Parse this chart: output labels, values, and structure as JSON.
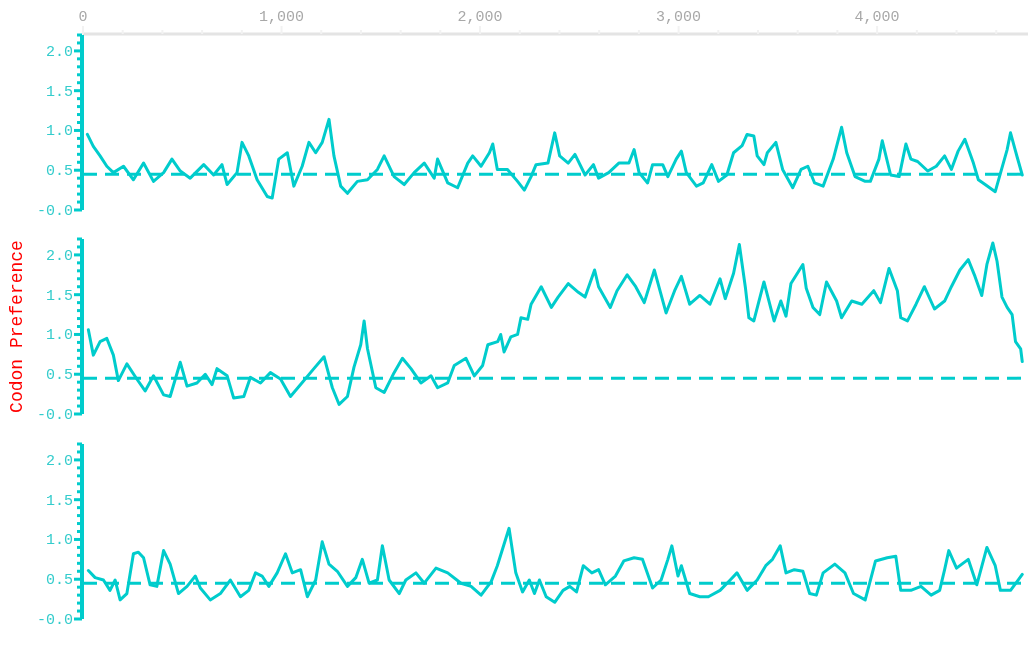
{
  "chart_data": [
    {
      "type": "line",
      "xlim": [
        0,
        4760
      ],
      "xticks": [
        0,
        {
          "value": 200,
          "label": null
        },
        {
          "value": 400,
          "label": null
        },
        {
          "value": 600,
          "label": null
        },
        {
          "value": 800,
          "label": null
        },
        {
          "value": 1000,
          "label": "1,000"
        },
        {
          "value": 1200,
          "label": null
        },
        {
          "value": 1400,
          "label": null
        },
        {
          "value": 1600,
          "label": null
        },
        {
          "value": 1800,
          "label": null
        },
        {
          "value": 2000,
          "label": "2,000"
        },
        {
          "value": 2200,
          "label": null
        },
        {
          "value": 2400,
          "label": null
        },
        {
          "value": 2600,
          "label": null
        },
        {
          "value": 2800,
          "label": null
        },
        {
          "value": 3000,
          "label": "3,000"
        },
        {
          "value": 3200,
          "label": null
        },
        {
          "value": 3400,
          "label": null
        },
        {
          "value": 3600,
          "label": null
        },
        {
          "value": 3800,
          "label": null
        },
        {
          "value": 4000,
          "label": "4,000"
        },
        {
          "value": 4200,
          "label": null
        },
        {
          "value": 4400,
          "label": null
        },
        {
          "value": 4600,
          "label": null
        }
      ],
      "ylim": [
        0,
        2.2
      ],
      "yticks": [
        {
          "value": 0,
          "label": "-0.0"
        },
        {
          "value": 0.1,
          "label": null
        },
        {
          "value": 0.2,
          "label": null
        },
        {
          "value": 0.3,
          "label": null
        },
        {
          "value": 0.4,
          "label": null
        },
        {
          "value": 0.5,
          "label": "0.5"
        },
        {
          "value": 0.6,
          "label": null
        },
        {
          "value": 0.7,
          "label": null
        },
        {
          "value": 0.8,
          "label": null
        },
        {
          "value": 0.9,
          "label": null
        },
        {
          "value": 1,
          "label": "1.0"
        },
        {
          "value": 1.1,
          "label": null
        },
        {
          "value": 1.2,
          "label": null
        },
        {
          "value": 1.3,
          "label": null
        },
        {
          "value": 1.4,
          "label": null
        },
        {
          "value": 1.5,
          "label": "1.5"
        },
        {
          "value": 1.6,
          "label": null
        },
        {
          "value": 1.7,
          "label": null
        },
        {
          "value": 1.8,
          "label": null
        },
        {
          "value": 1.9,
          "label": null
        },
        {
          "value": 2,
          "label": "2.0"
        },
        {
          "value": 2.1,
          "label": null
        },
        {
          "value": 2.2,
          "label": null
        }
      ],
      "ref_lines": [
        {
          "axis": "y",
          "value": 0.45,
          "color": "#00cccc",
          "line_style": "dashed"
        }
      ],
      "series": [
        {
          "color": "#00cccc",
          "x": [
            22,
            52,
            86,
            120,
            153,
            204,
            254,
            305,
            355,
            406,
            448,
            490,
            540,
            608,
            658,
            700,
            726,
            776,
            801,
            835,
            877,
            928,
            953,
            986,
            1029,
            1062,
            1104,
            1138,
            1172,
            1205,
            1239,
            1264,
            1298,
            1332,
            1382,
            1433,
            1483,
            1517,
            1567,
            1618,
            1668,
            1719,
            1769,
            1786,
            1837,
            1887,
            1938,
            1963,
            2005,
            2047,
            2064,
            2087,
            2138,
            2189,
            2223,
            2257,
            2282,
            2342,
            2376,
            2401,
            2444,
            2478,
            2529,
            2571,
            2597,
            2648,
            2699,
            2750,
            2776,
            2801,
            2844,
            2869,
            2920,
            2946,
            2988,
            3014,
            3039,
            3090,
            3124,
            3167,
            3201,
            3243,
            3277,
            3320,
            3345,
            3379,
            3396,
            3430,
            3447,
            3490,
            3524,
            3575,
            3617,
            3651,
            3685,
            3728,
            3779,
            3821,
            3847,
            3889,
            3940,
            3966,
            4009,
            4026,
            4068,
            4111,
            4145,
            4170,
            4204,
            4255,
            4298,
            4340,
            4374,
            4408,
            4442,
            4485,
            4510,
            4544,
            4595,
            4655,
            4672,
            4706,
            4731
          ],
          "values": [
            0.95,
            0.8,
            0.68,
            0.55,
            0.47,
            0.55,
            0.38,
            0.59,
            0.36,
            0.47,
            0.64,
            0.49,
            0.4,
            0.57,
            0.44,
            0.57,
            0.32,
            0.47,
            0.85,
            0.68,
            0.38,
            0.17,
            0.15,
            0.64,
            0.72,
            0.3,
            0.55,
            0.85,
            0.72,
            0.85,
            1.14,
            0.68,
            0.3,
            0.21,
            0.36,
            0.38,
            0.51,
            0.68,
            0.42,
            0.32,
            0.47,
            0.59,
            0.4,
            0.64,
            0.34,
            0.28,
            0.59,
            0.68,
            0.55,
            0.72,
            0.83,
            0.51,
            0.51,
            0.36,
            0.25,
            0.42,
            0.57,
            0.59,
            0.97,
            0.68,
            0.59,
            0.7,
            0.44,
            0.57,
            0.4,
            0.47,
            0.59,
            0.59,
            0.76,
            0.47,
            0.34,
            0.57,
            0.57,
            0.42,
            0.64,
            0.74,
            0.47,
            0.3,
            0.34,
            0.57,
            0.36,
            0.44,
            0.72,
            0.81,
            0.95,
            0.93,
            0.68,
            0.57,
            0.72,
            0.85,
            0.51,
            0.28,
            0.51,
            0.55,
            0.34,
            0.3,
            0.64,
            1.04,
            0.72,
            0.42,
            0.36,
            0.36,
            0.64,
            0.87,
            0.44,
            0.42,
            0.83,
            0.64,
            0.61,
            0.49,
            0.55,
            0.68,
            0.51,
            0.74,
            0.89,
            0.59,
            0.38,
            0.32,
            0.23,
            0.76,
            0.97,
            0.66,
            0.44
          ]
        }
      ]
    },
    {
      "type": "line",
      "xlim": [
        0,
        4760
      ],
      "tick_labels": "y",
      "ylabel": "Codon Preference",
      "ylim": [
        0,
        2.2
      ],
      "yticks": [
        {
          "value": 0,
          "label": "-0.0"
        },
        {
          "value": 0.1,
          "label": null
        },
        {
          "value": 0.2,
          "label": null
        },
        {
          "value": 0.3,
          "label": null
        },
        {
          "value": 0.4,
          "label": null
        },
        {
          "value": 0.5,
          "label": "0.5"
        },
        {
          "value": 0.6,
          "label": null
        },
        {
          "value": 0.7,
          "label": null
        },
        {
          "value": 0.8,
          "label": null
        },
        {
          "value": 0.9,
          "label": null
        },
        {
          "value": 1,
          "label": "1.0"
        },
        {
          "value": 1.1,
          "label": null
        },
        {
          "value": 1.2,
          "label": null
        },
        {
          "value": 1.3,
          "label": null
        },
        {
          "value": 1.4,
          "label": null
        },
        {
          "value": 1.5,
          "label": "1.5"
        },
        {
          "value": 1.6,
          "label": null
        },
        {
          "value": 1.7,
          "label": null
        },
        {
          "value": 1.8,
          "label": null
        },
        {
          "value": 1.9,
          "label": null
        },
        {
          "value": 2,
          "label": "2.0"
        },
        {
          "value": 2.1,
          "label": null
        },
        {
          "value": 2.2,
          "label": null
        }
      ],
      "ref_lines": [
        {
          "axis": "y",
          "value": 0.45,
          "color": "#00cccc",
          "line_style": "dashed"
        }
      ],
      "series": [
        {
          "color": "#00cccc",
          "x": [
            27,
            52,
            86,
            120,
            153,
            178,
            221,
            271,
            313,
            355,
            406,
            439,
            490,
            524,
            574,
            616,
            650,
            675,
            726,
            759,
            810,
            843,
            894,
            944,
            995,
            1045,
            1096,
            1163,
            1214,
            1256,
            1290,
            1332,
            1365,
            1399,
            1416,
            1433,
            1475,
            1517,
            1567,
            1609,
            1652,
            1702,
            1753,
            1786,
            1837,
            1870,
            1929,
            1971,
            2013,
            2039,
            2089,
            2104,
            2121,
            2155,
            2189,
            2206,
            2240,
            2257,
            2308,
            2359,
            2393,
            2444,
            2495,
            2529,
            2577,
            2597,
            2656,
            2690,
            2741,
            2784,
            2827,
            2878,
            2937,
            2980,
            3014,
            3056,
            3107,
            3158,
            3209,
            3235,
            3277,
            3306,
            3337,
            3354,
            3379,
            3430,
            3481,
            3515,
            3541,
            3566,
            3626,
            3643,
            3677,
            3711,
            3745,
            3796,
            3821,
            3872,
            3923,
            3983,
            4017,
            4060,
            4102,
            4119,
            4153,
            4196,
            4238,
            4289,
            4340,
            4374,
            4417,
            4459,
            4493,
            4527,
            4553,
            4583,
            4604,
            4629,
            4655,
            4680,
            4697,
            4723,
            4731
          ],
          "values": [
            1.06,
            0.74,
            0.91,
            0.95,
            0.74,
            0.42,
            0.63,
            0.44,
            0.29,
            0.48,
            0.24,
            0.22,
            0.65,
            0.35,
            0.39,
            0.5,
            0.37,
            0.57,
            0.48,
            0.2,
            0.22,
            0.46,
            0.39,
            0.52,
            0.44,
            0.22,
            0.37,
            0.57,
            0.72,
            0.33,
            0.12,
            0.22,
            0.59,
            0.87,
            1.17,
            0.82,
            0.33,
            0.27,
            0.52,
            0.7,
            0.57,
            0.39,
            0.48,
            0.33,
            0.39,
            0.61,
            0.7,
            0.48,
            0.61,
            0.87,
            0.91,
            1.0,
            0.78,
            0.97,
            1.0,
            1.21,
            1.19,
            1.38,
            1.6,
            1.34,
            1.47,
            1.64,
            1.53,
            1.47,
            1.81,
            1.6,
            1.34,
            1.55,
            1.75,
            1.6,
            1.4,
            1.81,
            1.27,
            1.55,
            1.73,
            1.38,
            1.49,
            1.38,
            1.7,
            1.45,
            1.77,
            2.13,
            1.58,
            1.21,
            1.17,
            1.66,
            1.17,
            1.42,
            1.23,
            1.64,
            1.88,
            1.58,
            1.34,
            1.25,
            1.66,
            1.42,
            1.21,
            1.42,
            1.38,
            1.55,
            1.4,
            1.83,
            1.55,
            1.21,
            1.17,
            1.38,
            1.6,
            1.32,
            1.42,
            1.6,
            1.81,
            1.94,
            1.73,
            1.49,
            1.88,
            2.15,
            1.92,
            1.47,
            1.34,
            1.25,
            0.91,
            0.82,
            0.66
          ]
        }
      ]
    },
    {
      "type": "line",
      "xlim": [
        0,
        4760
      ],
      "tick_labels": "y",
      "ylim": [
        0,
        2.2
      ],
      "yticks": [
        {
          "value": 0,
          "label": "-0.0"
        },
        {
          "value": 0.1,
          "label": null
        },
        {
          "value": 0.2,
          "label": null
        },
        {
          "value": 0.3,
          "label": null
        },
        {
          "value": 0.4,
          "label": null
        },
        {
          "value": 0.5,
          "label": "0.5"
        },
        {
          "value": 0.6,
          "label": null
        },
        {
          "value": 0.7,
          "label": null
        },
        {
          "value": 0.8,
          "label": null
        },
        {
          "value": 0.9,
          "label": null
        },
        {
          "value": 1,
          "label": "1.0"
        },
        {
          "value": 1.1,
          "label": null
        },
        {
          "value": 1.2,
          "label": null
        },
        {
          "value": 1.3,
          "label": null
        },
        {
          "value": 1.4,
          "label": null
        },
        {
          "value": 1.5,
          "label": "1.5"
        },
        {
          "value": 1.6,
          "label": null
        },
        {
          "value": 1.7,
          "label": null
        },
        {
          "value": 1.8,
          "label": null
        },
        {
          "value": 1.9,
          "label": null
        },
        {
          "value": 2,
          "label": "2.0"
        },
        {
          "value": 2.1,
          "label": null
        },
        {
          "value": 2.2,
          "label": null
        }
      ],
      "ref_lines": [
        {
          "axis": "y",
          "value": 0.45,
          "color": "#00cccc",
          "line_style": "dashed"
        }
      ],
      "series": [
        {
          "color": "#00cccc",
          "x": [
            27,
            61,
            103,
            136,
            162,
            187,
            221,
            254,
            279,
            305,
            338,
            372,
            406,
            439,
            481,
            524,
            566,
            591,
            641,
            692,
            742,
            793,
            835,
            869,
            902,
            936,
            978,
            1020,
            1054,
            1096,
            1130,
            1172,
            1205,
            1239,
            1281,
            1332,
            1374,
            1407,
            1441,
            1483,
            1508,
            1542,
            1593,
            1626,
            1677,
            1719,
            1778,
            1837,
            1904,
            1955,
            2005,
            2056,
            2087,
            2146,
            2180,
            2214,
            2248,
            2274,
            2299,
            2333,
            2376,
            2418,
            2452,
            2486,
            2520,
            2563,
            2597,
            2631,
            2682,
            2724,
            2776,
            2818,
            2869,
            2912,
            2946,
            2966,
            2997,
            3014,
            3056,
            3107,
            3150,
            3209,
            3260,
            3294,
            3345,
            3396,
            3439,
            3473,
            3512,
            3541,
            3583,
            3626,
            3660,
            3694,
            3728,
            3787,
            3838,
            3881,
            3940,
            3992,
            4051,
            4094,
            4119,
            4170,
            4221,
            4272,
            4315,
            4340,
            4361,
            4400,
            4459,
            4502,
            4553,
            4595,
            4621,
            4672,
            4731
          ],
          "values": [
            0.61,
            0.52,
            0.49,
            0.36,
            0.49,
            0.24,
            0.32,
            0.82,
            0.84,
            0.77,
            0.43,
            0.41,
            0.86,
            0.69,
            0.32,
            0.41,
            0.54,
            0.39,
            0.24,
            0.32,
            0.49,
            0.28,
            0.36,
            0.58,
            0.54,
            0.41,
            0.58,
            0.82,
            0.58,
            0.62,
            0.28,
            0.49,
            0.97,
            0.69,
            0.6,
            0.41,
            0.52,
            0.75,
            0.45,
            0.49,
            0.92,
            0.49,
            0.32,
            0.49,
            0.58,
            0.45,
            0.64,
            0.58,
            0.45,
            0.41,
            0.3,
            0.47,
            0.67,
            1.14,
            0.58,
            0.34,
            0.49,
            0.32,
            0.49,
            0.28,
            0.21,
            0.36,
            0.41,
            0.34,
            0.67,
            0.58,
            0.62,
            0.43,
            0.54,
            0.73,
            0.77,
            0.75,
            0.39,
            0.49,
            0.75,
            0.92,
            0.54,
            0.67,
            0.32,
            0.28,
            0.28,
            0.36,
            0.49,
            0.58,
            0.36,
            0.49,
            0.67,
            0.75,
            0.92,
            0.58,
            0.62,
            0.6,
            0.32,
            0.3,
            0.58,
            0.69,
            0.58,
            0.32,
            0.24,
            0.73,
            0.77,
            0.79,
            0.36,
            0.36,
            0.41,
            0.3,
            0.36,
            0.62,
            0.86,
            0.64,
            0.75,
            0.43,
            0.9,
            0.67,
            0.36,
            0.36,
            0.56
          ]
        }
      ]
    }
  ]
}
